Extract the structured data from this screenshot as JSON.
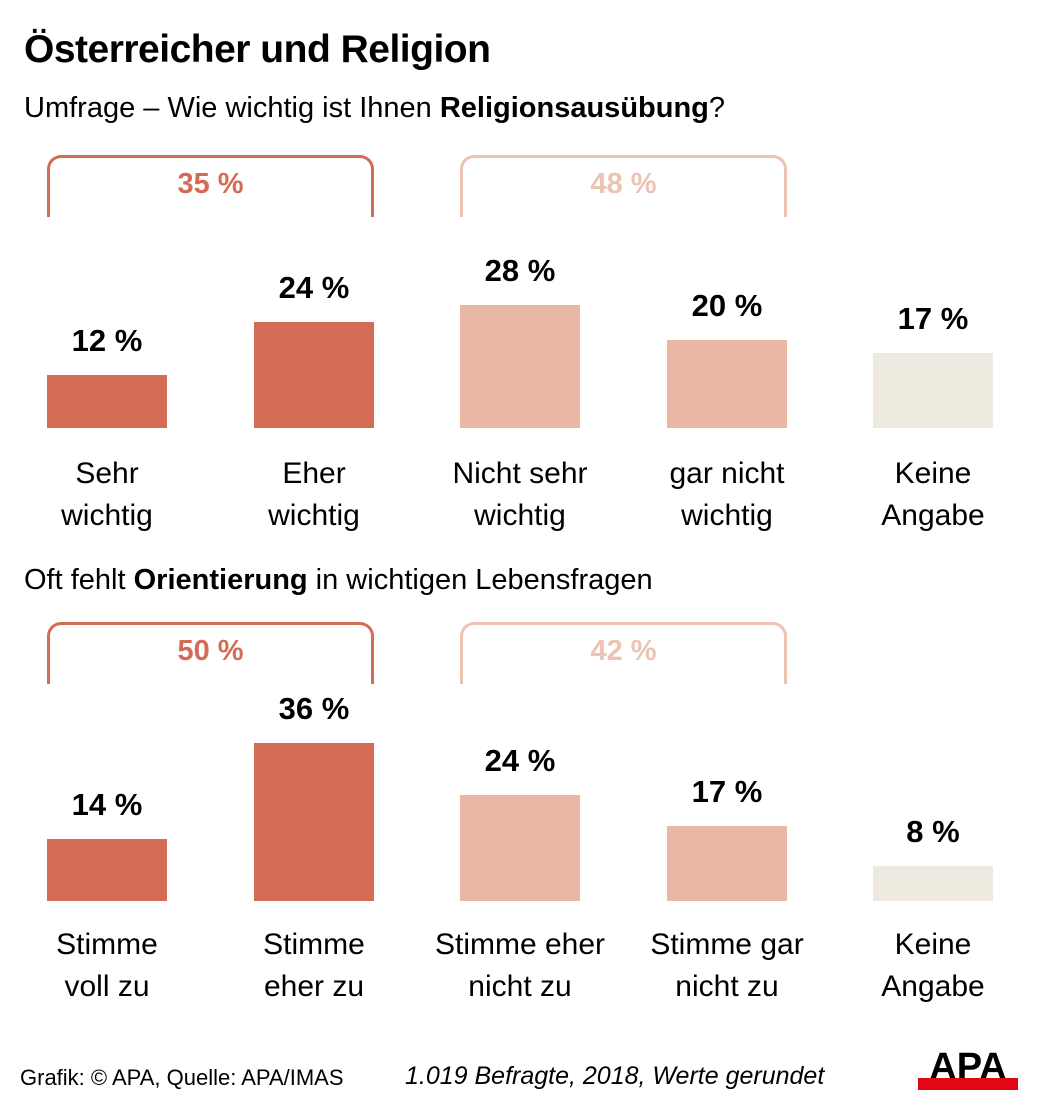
{
  "title": "Österreicher und Religion",
  "colors": {
    "agree": "#D46B55",
    "disagree": "#E8B8A5",
    "none": "#EEEAE0",
    "disagree_bracket": "#EDC3B3"
  },
  "chart_data": [
    {
      "type": "bar",
      "subtitle_pre": "Umfrage – Wie wichtig ist Ihnen ",
      "subtitle_bold": "Religionsausübung",
      "subtitle_post": "?",
      "categories": [
        "Sehr\nwichtig",
        "Eher\nwichtig",
        "Nicht sehr\nwichtig",
        "gar nicht\nwichtig",
        "Keine\nAngabe"
      ],
      "values": [
        12,
        24,
        28,
        20,
        17
      ],
      "unit": "%",
      "groups": [
        {
          "label": "35 %",
          "span": [
            0,
            1
          ]
        },
        {
          "label": "48 %",
          "span": [
            2,
            3
          ]
        }
      ]
    },
    {
      "type": "bar",
      "subtitle_pre": "Oft fehlt ",
      "subtitle_bold": "Orientierung",
      "subtitle_post": " in wichtigen Lebensfragen",
      "categories": [
        "Stimme\nvoll zu",
        "Stimme\neher zu",
        "Stimme eher\nnicht zu",
        "Stimme gar\nnicht zu",
        "Keine\nAngabe"
      ],
      "values": [
        14,
        36,
        24,
        17,
        8
      ],
      "unit": "%",
      "groups": [
        {
          "label": "50 %",
          "span": [
            0,
            1
          ]
        },
        {
          "label": "42 %",
          "span": [
            2,
            3
          ]
        }
      ]
    }
  ],
  "footer": {
    "credit": "Grafik: © APA, Quelle: APA/IMAS",
    "note": "1.019 Befragte, 2018, Werte gerundet",
    "logo_text": "APA"
  }
}
